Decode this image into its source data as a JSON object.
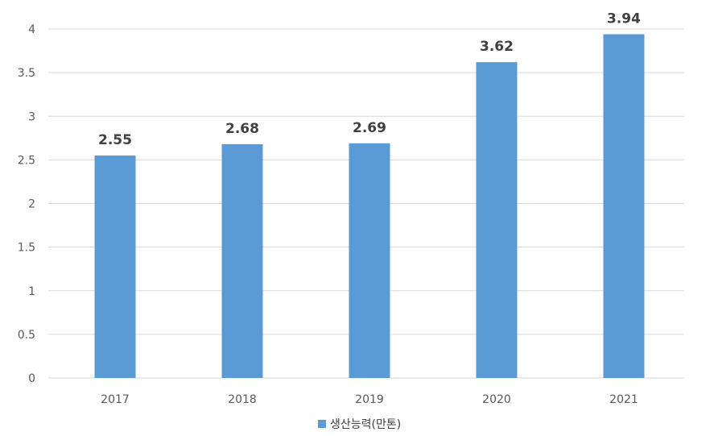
{
  "chart_data": {
    "type": "bar",
    "categories": [
      "2017",
      "2018",
      "2019",
      "2020",
      "2021"
    ],
    "series": [
      {
        "name": "생산능력(만톤)",
        "values": [
          2.55,
          2.68,
          2.69,
          3.62,
          3.94
        ],
        "color": "#5b9bd5"
      }
    ],
    "data_labels": [
      "2.55",
      "2.68",
      "2.69",
      "3.62",
      "3.94"
    ],
    "y_ticks": [
      "0",
      "0.5",
      "1",
      "1.5",
      "2",
      "2.5",
      "3",
      "3.5",
      "4"
    ],
    "ylim": [
      0,
      4
    ],
    "grid": true,
    "legend": "bottom-center"
  }
}
